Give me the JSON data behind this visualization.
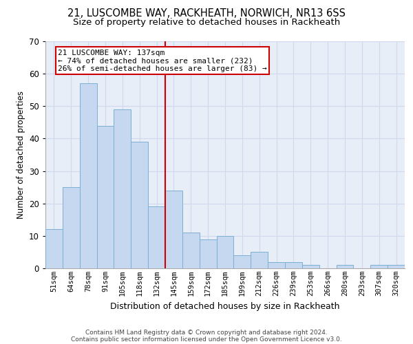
{
  "title1": "21, LUSCOMBE WAY, RACKHEATH, NORWICH, NR13 6SS",
  "title2": "Size of property relative to detached houses in Rackheath",
  "xlabel": "Distribution of detached houses by size in Rackheath",
  "ylabel": "Number of detached properties",
  "bar_labels": [
    "51sqm",
    "64sqm",
    "78sqm",
    "91sqm",
    "105sqm",
    "118sqm",
    "132sqm",
    "145sqm",
    "159sqm",
    "172sqm",
    "185sqm",
    "199sqm",
    "212sqm",
    "226sqm",
    "239sqm",
    "253sqm",
    "266sqm",
    "280sqm",
    "293sqm",
    "307sqm",
    "320sqm"
  ],
  "bar_values": [
    12,
    25,
    57,
    44,
    49,
    39,
    19,
    24,
    11,
    9,
    10,
    4,
    5,
    2,
    2,
    1,
    0,
    1,
    0,
    1,
    1
  ],
  "bar_color": "#c5d8f0",
  "bar_edgecolor": "#7bafd4",
  "vline_x_index": 6.5,
  "vline_color": "#cc0000",
  "annotation_line1": "21 LUSCOMBE WAY: 137sqm",
  "annotation_line2": "← 74% of detached houses are smaller (232)",
  "annotation_line3": "26% of semi-detached houses are larger (83) →",
  "annotation_box_edgecolor": "#cc0000",
  "annotation_box_facecolor": "white",
  "ylim": [
    0,
    70
  ],
  "yticks": [
    0,
    10,
    20,
    30,
    40,
    50,
    60,
    70
  ],
  "grid_color": "#d0d8ec",
  "background_color": "#e8eef8",
  "footer_line1": "Contains HM Land Registry data © Crown copyright and database right 2024.",
  "footer_line2": "Contains public sector information licensed under the Open Government Licence v3.0.",
  "title1_fontsize": 10.5,
  "title2_fontsize": 9.5,
  "xlabel_fontsize": 9,
  "ylabel_fontsize": 8.5,
  "tick_fontsize": 7.5,
  "annotation_fontsize": 8,
  "footer_fontsize": 6.5
}
